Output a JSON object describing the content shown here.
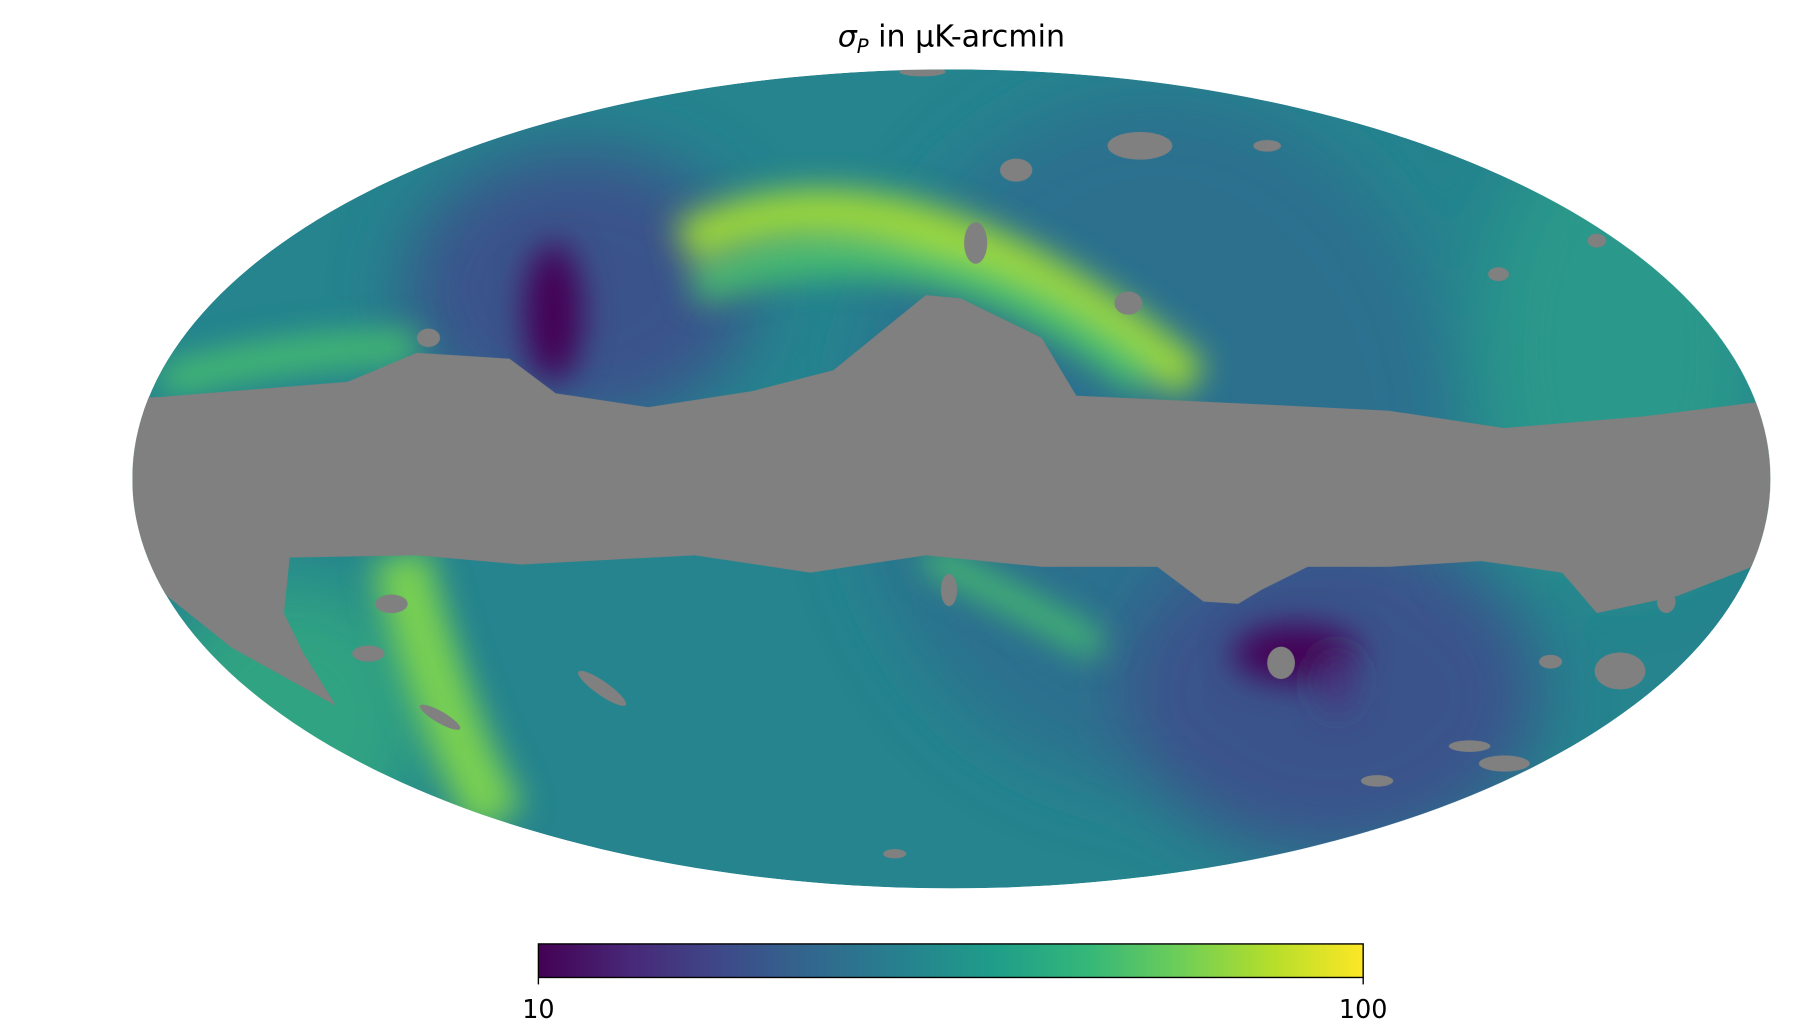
{
  "chart_data": {
    "type": "mollweide",
    "title": {
      "symbol": "σ",
      "subscript": "P",
      "rest": " in μK-arcmin"
    },
    "colorbar": {
      "lim": [
        10,
        100
      ],
      "ticks": [
        10,
        100
      ],
      "scale": "log",
      "colormap": "viridis"
    },
    "mask_color": "#808080"
  }
}
